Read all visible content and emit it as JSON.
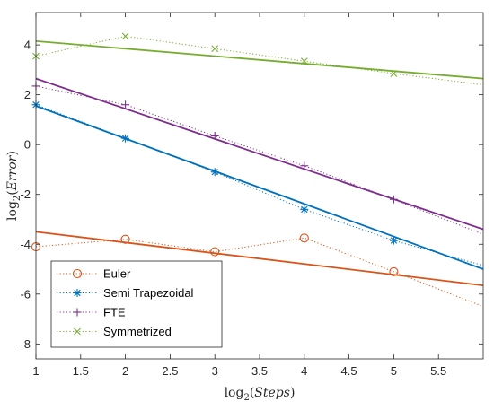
{
  "chart_data": {
    "type": "line",
    "xlabel": {
      "fn": "log",
      "base": "2",
      "open": "(",
      "var": "Steps",
      "close": ")"
    },
    "ylabel": {
      "fn": "log",
      "base": "2",
      "open": "(",
      "var": "Error",
      "close": ")"
    },
    "xlim": [
      1,
      6
    ],
    "ylim": [
      -8.6,
      5.3
    ],
    "x_ticks": [
      1,
      1.5,
      2,
      2.5,
      3,
      3.5,
      4,
      4.5,
      5,
      5.5
    ],
    "x_tick_labels": [
      "1",
      "1.5",
      "2",
      "2.5",
      "3",
      "3.5",
      "4",
      "4.5",
      "5",
      "5.5"
    ],
    "y_ticks": [
      -8,
      -6,
      -4,
      -2,
      0,
      2,
      4
    ],
    "y_tick_labels": [
      "-8",
      "-6",
      "-4",
      "-2",
      "0",
      "2",
      "4"
    ],
    "grid": false,
    "legend_position": "bottom-left",
    "series": [
      {
        "name": "Euler",
        "color": "#D95319",
        "marker": "circle",
        "x": [
          1,
          2,
          3,
          4,
          5
        ],
        "values": [
          -4.1,
          -3.8,
          -4.3,
          -3.75,
          -5.1
        ],
        "dotted_extension": {
          "x": [
            5,
            6
          ],
          "values": [
            -5.1,
            -6.5
          ]
        },
        "fit": {
          "x": [
            1,
            6
          ],
          "values": [
            -3.5,
            -5.65
          ]
        }
      },
      {
        "name": "Semi Trapezoidal",
        "color": "#0072BD",
        "marker": "asterisk",
        "x": [
          1,
          2,
          3,
          4,
          5
        ],
        "values": [
          1.6,
          0.25,
          -1.1,
          -2.6,
          -3.85
        ],
        "dotted_extension": {
          "x": [
            5,
            6
          ],
          "values": [
            -3.85,
            -4.85
          ]
        },
        "fit": {
          "x": [
            1,
            6
          ],
          "values": [
            1.55,
            -5.0
          ]
        }
      },
      {
        "name": "FTE",
        "color": "#7E2F8E",
        "marker": "plus",
        "x": [
          1,
          2,
          3,
          4,
          5
        ],
        "values": [
          2.35,
          1.6,
          0.35,
          -0.85,
          -2.2
        ],
        "dotted_extension": {
          "x": [
            5,
            6
          ],
          "values": [
            -2.2,
            -3.6
          ]
        },
        "fit": {
          "x": [
            1,
            6
          ],
          "values": [
            2.65,
            -3.4
          ]
        }
      },
      {
        "name": "Symmetrized",
        "color": "#77AC30",
        "marker": "x",
        "x": [
          1,
          2,
          3,
          4,
          5
        ],
        "values": [
          3.55,
          4.35,
          3.85,
          3.35,
          2.85
        ],
        "dotted_extension": {
          "x": [
            5,
            6
          ],
          "values": [
            2.85,
            2.4
          ]
        },
        "fit": {
          "x": [
            1,
            6
          ],
          "values": [
            4.15,
            2.65
          ]
        }
      }
    ]
  }
}
